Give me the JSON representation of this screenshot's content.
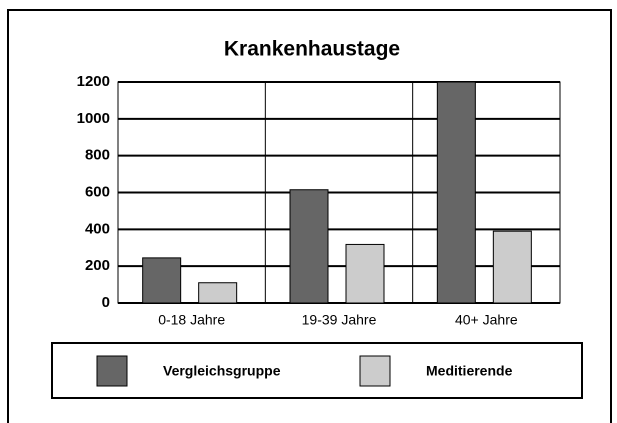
{
  "chart_data": {
    "type": "bar",
    "title": "Krankenhaustage",
    "categories": [
      "0-18 Jahre",
      "19-39 Jahre",
      "40+ Jahre"
    ],
    "series": [
      {
        "name": "Vergleichsgruppe",
        "color": "#666666",
        "values": [
          245,
          615,
          1200
        ]
      },
      {
        "name": "Meditierende",
        "color": "#cccccc",
        "values": [
          110,
          318,
          390
        ]
      }
    ],
    "ylim": [
      0,
      1200
    ],
    "yticks": [
      0,
      200,
      400,
      600,
      800,
      1000,
      1200
    ],
    "grid": true
  }
}
